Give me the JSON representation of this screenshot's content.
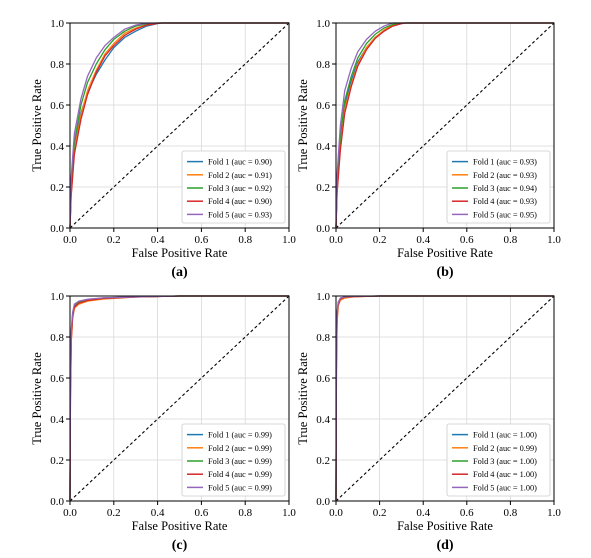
{
  "chart_data": [
    {
      "type": "line",
      "panel_label": "(a)",
      "xlabel": "False Positive Rate",
      "ylabel": "True Positive Rate",
      "xlim": [
        0,
        1
      ],
      "ylim": [
        0,
        1
      ],
      "xticks": [
        "0.0",
        "0.2",
        "0.4",
        "0.6",
        "0.8",
        "1.0"
      ],
      "yticks": [
        "0.0",
        "0.2",
        "0.4",
        "0.6",
        "0.8",
        "1.0"
      ],
      "grid": true,
      "legend": "bottom-right",
      "diagonal": true,
      "series": [
        {
          "name": "Fold 1 (auc = 0.90)",
          "color": "#1f77b4",
          "x": [
            0,
            0.005,
            0.02,
            0.05,
            0.08,
            0.12,
            0.16,
            0.2,
            0.25,
            0.3,
            0.35,
            0.4,
            0.42,
            1
          ],
          "y": [
            0,
            0.18,
            0.4,
            0.56,
            0.66,
            0.75,
            0.82,
            0.88,
            0.93,
            0.96,
            0.985,
            0.997,
            1,
            1
          ]
        },
        {
          "name": "Fold 2 (auc = 0.91)",
          "color": "#ff7f0e",
          "x": [
            0,
            0.005,
            0.02,
            0.05,
            0.08,
            0.12,
            0.16,
            0.2,
            0.25,
            0.3,
            0.35,
            0.4,
            0.42,
            1
          ],
          "y": [
            0,
            0.16,
            0.38,
            0.55,
            0.67,
            0.77,
            0.85,
            0.9,
            0.95,
            0.975,
            0.99,
            0.998,
            1,
            1
          ]
        },
        {
          "name": "Fold 3 (auc = 0.92)",
          "color": "#2ca02c",
          "x": [
            0,
            0.005,
            0.02,
            0.05,
            0.08,
            0.12,
            0.16,
            0.2,
            0.25,
            0.3,
            0.35,
            0.4,
            1
          ],
          "y": [
            0,
            0.2,
            0.42,
            0.6,
            0.71,
            0.8,
            0.87,
            0.92,
            0.96,
            0.985,
            0.995,
            1,
            1
          ]
        },
        {
          "name": "Fold 4 (auc = 0.90)",
          "color": "#d62728",
          "x": [
            0,
            0.005,
            0.02,
            0.05,
            0.08,
            0.12,
            0.16,
            0.2,
            0.25,
            0.3,
            0.35,
            0.4,
            0.42,
            1
          ],
          "y": [
            0,
            0.15,
            0.36,
            0.53,
            0.65,
            0.76,
            0.84,
            0.89,
            0.94,
            0.97,
            0.99,
            0.998,
            1,
            1
          ]
        },
        {
          "name": "Fold 5 (auc = 0.93)",
          "color": "#9467bd",
          "x": [
            0,
            0.005,
            0.02,
            0.05,
            0.08,
            0.12,
            0.16,
            0.2,
            0.25,
            0.3,
            0.35,
            0.4,
            1
          ],
          "y": [
            0,
            0.24,
            0.46,
            0.63,
            0.74,
            0.83,
            0.89,
            0.93,
            0.97,
            0.99,
            0.998,
            1,
            1
          ]
        }
      ]
    },
    {
      "type": "line",
      "panel_label": "(b)",
      "xlabel": "False Positive Rate",
      "ylabel": "True Positive Rate",
      "xlim": [
        0,
        1
      ],
      "ylim": [
        0,
        1
      ],
      "xticks": [
        "0.0",
        "0.2",
        "0.4",
        "0.6",
        "0.8",
        "1.0"
      ],
      "yticks": [
        "0.0",
        "0.2",
        "0.4",
        "0.6",
        "0.8",
        "1.0"
      ],
      "grid": true,
      "legend": "bottom-right",
      "diagonal": true,
      "series": [
        {
          "name": "Fold 1 (auc = 0.93)",
          "color": "#1f77b4",
          "x": [
            0,
            0.005,
            0.02,
            0.04,
            0.07,
            0.1,
            0.14,
            0.18,
            0.22,
            0.26,
            0.3,
            0.32,
            1
          ],
          "y": [
            0,
            0.2,
            0.42,
            0.6,
            0.72,
            0.81,
            0.88,
            0.93,
            0.96,
            0.985,
            0.997,
            1,
            1
          ]
        },
        {
          "name": "Fold 2 (auc = 0.93)",
          "color": "#ff7f0e",
          "x": [
            0,
            0.005,
            0.02,
            0.04,
            0.07,
            0.1,
            0.14,
            0.18,
            0.22,
            0.26,
            0.3,
            0.32,
            1
          ],
          "y": [
            0,
            0.18,
            0.4,
            0.58,
            0.7,
            0.8,
            0.88,
            0.93,
            0.965,
            0.99,
            0.998,
            1,
            1
          ]
        },
        {
          "name": "Fold 3 (auc = 0.94)",
          "color": "#2ca02c",
          "x": [
            0,
            0.005,
            0.02,
            0.04,
            0.07,
            0.1,
            0.14,
            0.18,
            0.22,
            0.26,
            0.3,
            1
          ],
          "y": [
            0,
            0.22,
            0.45,
            0.62,
            0.74,
            0.83,
            0.9,
            0.945,
            0.975,
            0.993,
            1,
            1
          ]
        },
        {
          "name": "Fold 4 (auc = 0.93)",
          "color": "#d62728",
          "x": [
            0,
            0.005,
            0.02,
            0.04,
            0.07,
            0.1,
            0.14,
            0.18,
            0.22,
            0.26,
            0.3,
            0.32,
            1
          ],
          "y": [
            0,
            0.17,
            0.38,
            0.56,
            0.69,
            0.79,
            0.87,
            0.925,
            0.96,
            0.985,
            0.997,
            1,
            1
          ]
        },
        {
          "name": "Fold 5 (auc = 0.95)",
          "color": "#9467bd",
          "x": [
            0,
            0.005,
            0.02,
            0.04,
            0.07,
            0.1,
            0.14,
            0.18,
            0.22,
            0.26,
            1
          ],
          "y": [
            0,
            0.26,
            0.5,
            0.67,
            0.78,
            0.86,
            0.92,
            0.96,
            0.985,
            1,
            1
          ]
        }
      ]
    },
    {
      "type": "line",
      "panel_label": "(c)",
      "xlabel": "False Positive Rate",
      "ylabel": "True Positive Rate",
      "xlim": [
        0,
        1
      ],
      "ylim": [
        0,
        1
      ],
      "xticks": [
        "0.0",
        "0.2",
        "0.4",
        "0.6",
        "0.8",
        "1.0"
      ],
      "yticks": [
        "0.0",
        "0.2",
        "0.4",
        "0.6",
        "0.8",
        "1.0"
      ],
      "grid": true,
      "legend": "bottom-right",
      "diagonal": true,
      "series": [
        {
          "name": "Fold 1 (auc = 0.99)",
          "color": "#1f77b4",
          "x": [
            0,
            0.002,
            0.006,
            0.012,
            0.02,
            0.04,
            0.08,
            0.15,
            0.3,
            0.5,
            1
          ],
          "y": [
            0,
            0.55,
            0.8,
            0.9,
            0.95,
            0.97,
            0.98,
            0.99,
            0.995,
            1,
            1
          ]
        },
        {
          "name": "Fold 2 (auc = 0.99)",
          "color": "#ff7f0e",
          "x": [
            0,
            0.002,
            0.006,
            0.012,
            0.02,
            0.04,
            0.08,
            0.15,
            0.3,
            0.5,
            1
          ],
          "y": [
            0,
            0.5,
            0.78,
            0.89,
            0.94,
            0.96,
            0.975,
            0.985,
            0.995,
            1,
            1
          ]
        },
        {
          "name": "Fold 3 (auc = 0.99)",
          "color": "#2ca02c",
          "x": [
            0,
            0.002,
            0.006,
            0.012,
            0.02,
            0.04,
            0.08,
            0.15,
            0.3,
            0.5,
            1
          ],
          "y": [
            0,
            0.58,
            0.82,
            0.91,
            0.955,
            0.972,
            0.982,
            0.99,
            0.996,
            1,
            1
          ]
        },
        {
          "name": "Fold 4 (auc = 0.99)",
          "color": "#d62728",
          "x": [
            0,
            0.002,
            0.006,
            0.012,
            0.02,
            0.04,
            0.08,
            0.15,
            0.3,
            0.5,
            1
          ],
          "y": [
            0,
            0.52,
            0.79,
            0.9,
            0.945,
            0.965,
            0.978,
            0.988,
            0.995,
            1,
            1
          ]
        },
        {
          "name": "Fold 5 (auc = 0.99)",
          "color": "#9467bd",
          "x": [
            0,
            0.002,
            0.006,
            0.012,
            0.02,
            0.04,
            0.08,
            0.15,
            0.3,
            0.5,
            1
          ],
          "y": [
            0,
            0.6,
            0.84,
            0.92,
            0.96,
            0.975,
            0.984,
            0.991,
            0.996,
            1,
            1
          ]
        }
      ]
    },
    {
      "type": "line",
      "panel_label": "(d)",
      "xlabel": "False Positive Rate",
      "ylabel": "True Positive Rate",
      "xlim": [
        0,
        1
      ],
      "ylim": [
        0,
        1
      ],
      "xticks": [
        "0.0",
        "0.2",
        "0.4",
        "0.6",
        "0.8",
        "1.0"
      ],
      "yticks": [
        "0.0",
        "0.2",
        "0.4",
        "0.6",
        "0.8",
        "1.0"
      ],
      "grid": true,
      "legend": "bottom-right",
      "diagonal": true,
      "series": [
        {
          "name": "Fold 1 (auc = 1.00)",
          "color": "#1f77b4",
          "x": [
            0,
            0.002,
            0.005,
            0.01,
            0.02,
            0.04,
            0.08,
            0.2,
            1
          ],
          "y": [
            0,
            0.7,
            0.9,
            0.96,
            0.985,
            0.993,
            0.997,
            1,
            1
          ]
        },
        {
          "name": "Fold 2 (auc = 0.99)",
          "color": "#ff7f0e",
          "x": [
            0,
            0.002,
            0.005,
            0.01,
            0.02,
            0.04,
            0.08,
            0.2,
            1
          ],
          "y": [
            0,
            0.65,
            0.87,
            0.95,
            0.98,
            0.99,
            0.996,
            1,
            1
          ]
        },
        {
          "name": "Fold 3 (auc = 1.00)",
          "color": "#2ca02c",
          "x": [
            0,
            0.002,
            0.005,
            0.01,
            0.02,
            0.04,
            0.08,
            0.2,
            1
          ],
          "y": [
            0,
            0.72,
            0.91,
            0.965,
            0.988,
            0.995,
            0.998,
            1,
            1
          ]
        },
        {
          "name": "Fold 4 (auc = 1.00)",
          "color": "#d62728",
          "x": [
            0,
            0.002,
            0.005,
            0.01,
            0.02,
            0.04,
            0.08,
            0.2,
            1
          ],
          "y": [
            0,
            0.68,
            0.89,
            0.96,
            0.985,
            0.994,
            0.997,
            1,
            1
          ]
        },
        {
          "name": "Fold 5 (auc = 1.00)",
          "color": "#9467bd",
          "x": [
            0,
            0.002,
            0.005,
            0.01,
            0.02,
            0.04,
            0.08,
            0.2,
            1
          ],
          "y": [
            0,
            0.74,
            0.92,
            0.97,
            0.99,
            0.996,
            0.998,
            1,
            1
          ]
        }
      ]
    }
  ]
}
